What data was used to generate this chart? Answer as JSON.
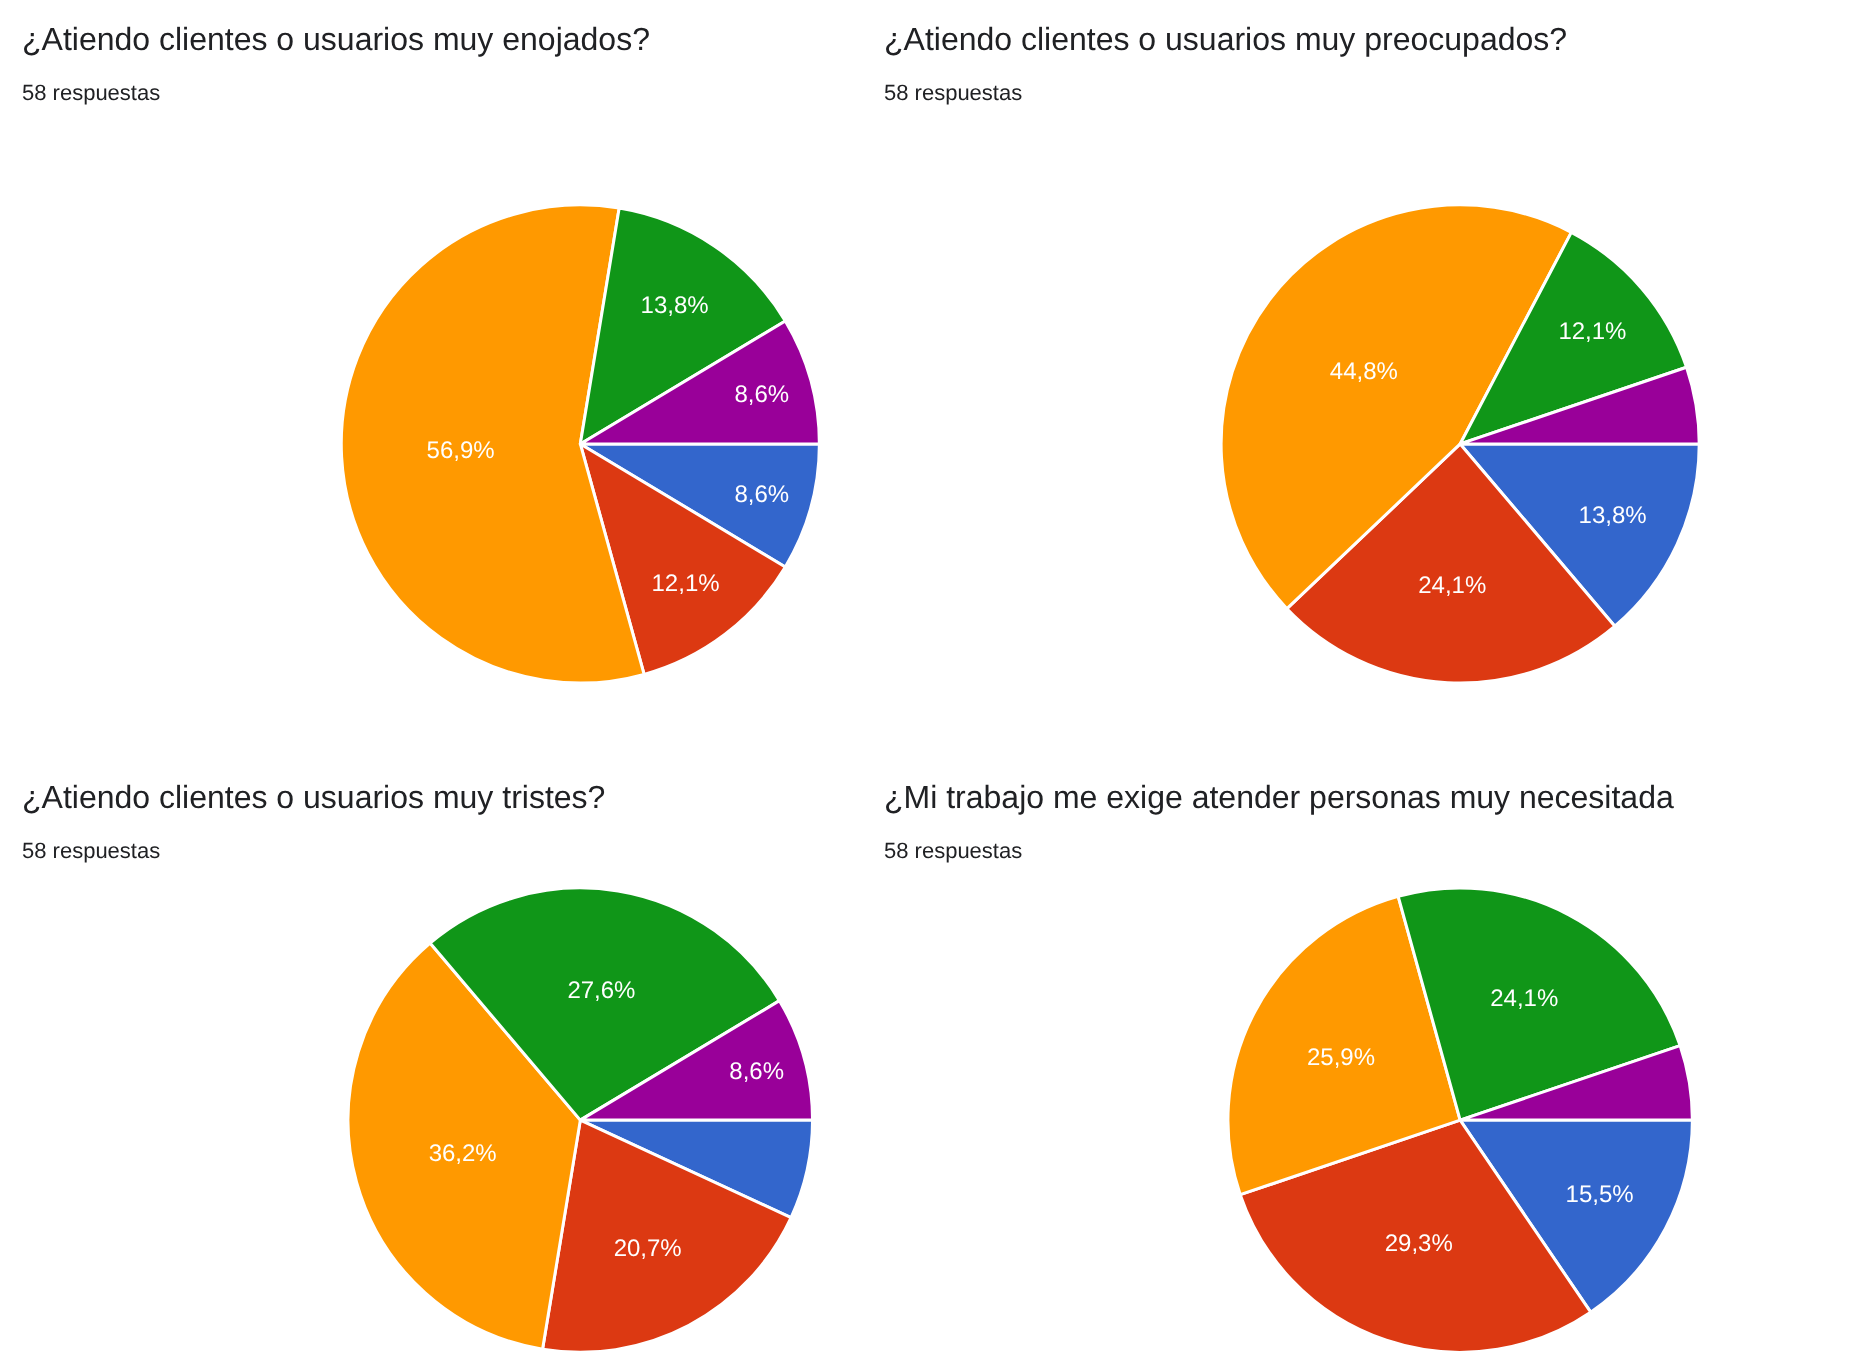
{
  "chart_data": [
    {
      "type": "pie",
      "title": "¿Atiendo clientes o usuarios muy enojados?",
      "subtitle": "58 respuestas",
      "categories": [
        null,
        null,
        null,
        null,
        null
      ],
      "values": [
        8.6,
        12.1,
        56.9,
        13.8,
        8.6
      ],
      "colors": [
        "#3366cc",
        "#dc3912",
        "#ff9900",
        "#109618",
        "#990099"
      ],
      "value_labels": [
        "8,6%",
        "12,1%",
        "56,9%",
        "13,8%",
        "8,6%"
      ]
    },
    {
      "type": "pie",
      "title": "¿Atiendo clientes o usuarios muy preocupados?",
      "subtitle": "58 respuestas",
      "categories": [
        null,
        null,
        null,
        null,
        null
      ],
      "values": [
        13.8,
        24.1,
        44.8,
        12.1,
        5.2
      ],
      "colors": [
        "#3366cc",
        "#dc3912",
        "#ff9900",
        "#109618",
        "#990099"
      ],
      "value_labels": [
        "13,8%",
        "24,1%",
        "44,8%",
        "12,1%",
        null
      ]
    },
    {
      "type": "pie",
      "title": "¿Atiendo clientes o usuarios muy tristes?",
      "subtitle": "58 respuestas",
      "categories": [
        null,
        null,
        null,
        null,
        null
      ],
      "values": [
        6.9,
        20.7,
        36.2,
        27.6,
        8.6
      ],
      "colors": [
        "#3366cc",
        "#dc3912",
        "#ff9900",
        "#109618",
        "#990099"
      ],
      "value_labels": [
        null,
        "20,7%",
        "36,2%",
        "27,6%",
        "8,6%"
      ]
    },
    {
      "type": "pie",
      "title": "¿Mi trabajo me exige atender personas muy necesitada",
      "subtitle": "58 respuestas",
      "categories": [
        null,
        null,
        null,
        null,
        null
      ],
      "values": [
        15.5,
        29.3,
        25.9,
        24.1,
        5.2
      ],
      "colors": [
        "#3366cc",
        "#dc3912",
        "#ff9900",
        "#109618",
        "#990099"
      ],
      "value_labels": [
        "15,5%",
        "29,3%",
        "25,9%",
        "24,1%",
        null
      ]
    }
  ]
}
